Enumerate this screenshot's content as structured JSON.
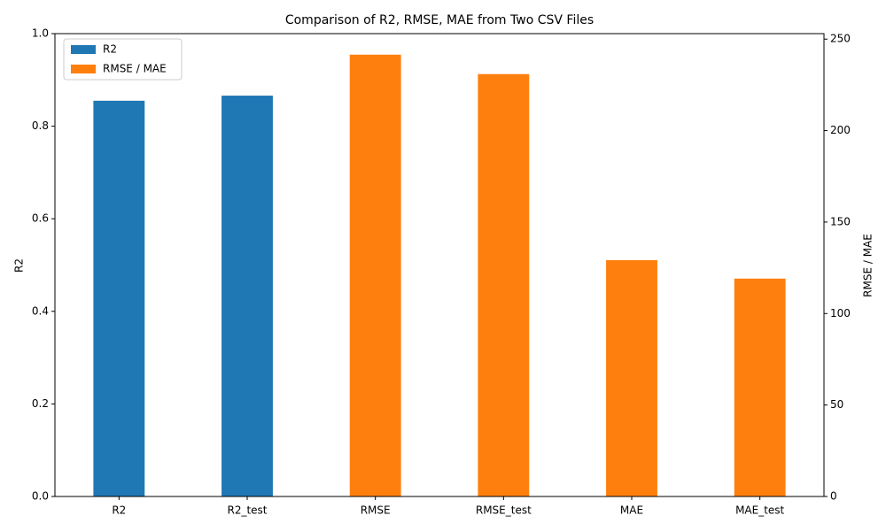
{
  "chart_data": {
    "type": "bar",
    "title": "Comparison of R2, RMSE, MAE from Two CSV Files",
    "ylabel": "R2",
    "y2label": "RMSE / MAE",
    "categories": [
      "R2",
      "R2_test",
      "RMSE",
      "RMSE_test",
      "MAE",
      "MAE_test"
    ],
    "series": [
      {
        "name": "R2",
        "color": "#1f77b4",
        "axis": "y",
        "values": [
          0.855,
          0.866,
          null,
          null,
          null,
          null
        ]
      },
      {
        "name": "RMSE / MAE",
        "color": "#ff7f0e",
        "axis": "y2",
        "values": [
          null,
          null,
          241.5,
          230.9,
          129.2,
          119.1
        ]
      }
    ],
    "ylim": [
      0,
      1
    ],
    "yticks": [
      {
        "value": 0,
        "label": "0.0"
      },
      0.2,
      0.4,
      0.6,
      0.8,
      {
        "value": 1,
        "label": "1.0"
      }
    ],
    "y2lim": [
      0,
      253
    ],
    "y2ticks": [
      0,
      50,
      100,
      150,
      200,
      250
    ],
    "legend": "upper left"
  }
}
